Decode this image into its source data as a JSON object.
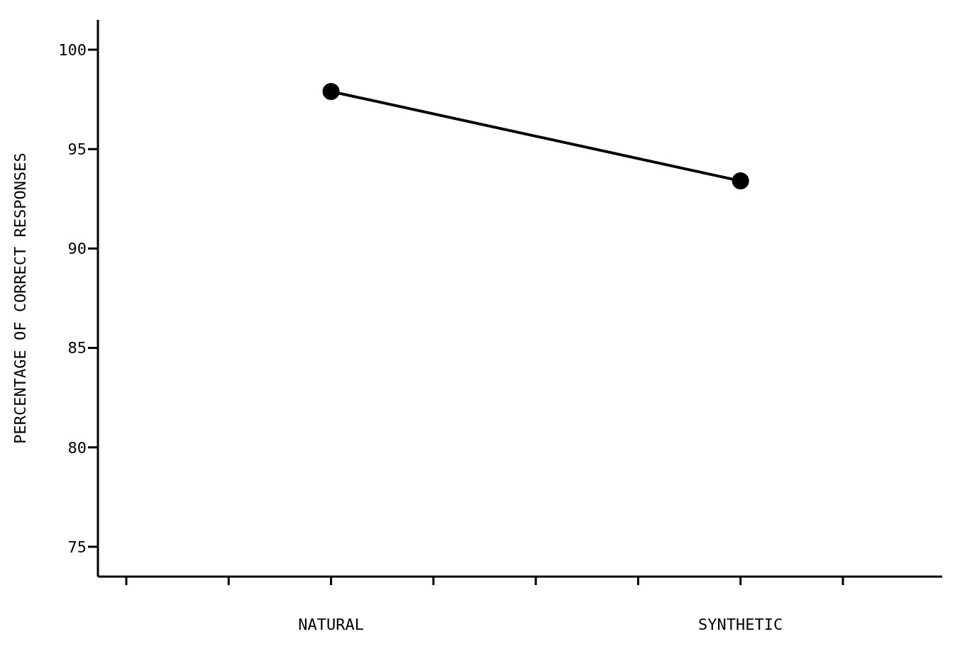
{
  "chart_data": {
    "type": "line",
    "ylabel": "PERCENTAGE OF CORRECT RESPONSES",
    "categories": [
      null,
      null,
      "NATURAL",
      null,
      null,
      null,
      "SYNTHETIC",
      null
    ],
    "series": [
      {
        "color": "#000000",
        "values": [
          null,
          null,
          97.9,
          null,
          null,
          null,
          93.4,
          null
        ]
      }
    ],
    "ylim": [
      73.5,
      101.5
    ],
    "yticks": [
      75,
      80,
      85,
      90,
      95,
      100
    ],
    "grid": false,
    "legend": false,
    "marker": "circle",
    "line_style": "solid"
  }
}
